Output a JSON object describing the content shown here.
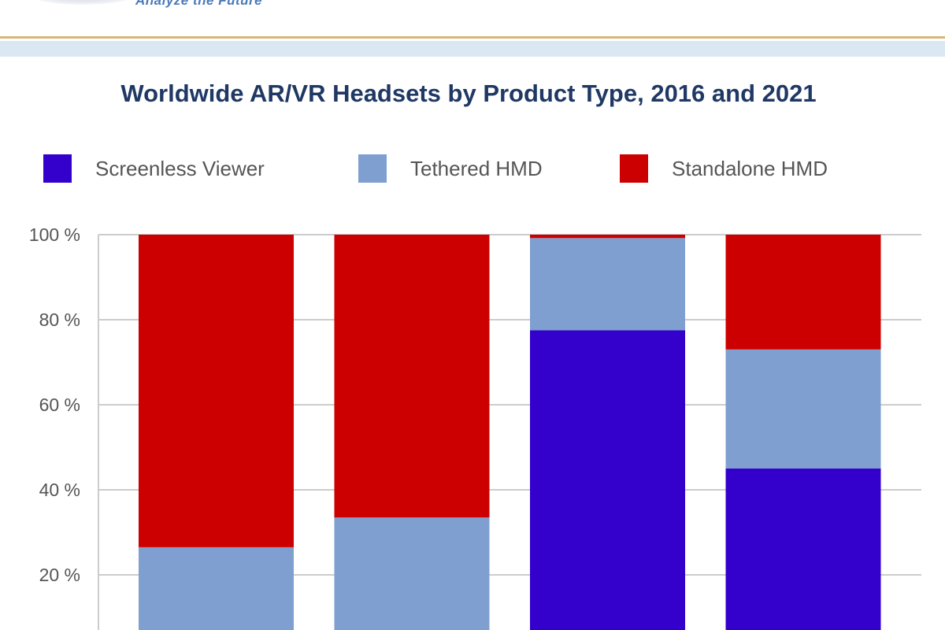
{
  "brand": {
    "tagline": "Analyze the Future"
  },
  "colors": {
    "screenless": "#3300cc",
    "tethered": "#7f9fd0",
    "standalone": "#cc0000",
    "title": "#1f3864",
    "gridline": "#cccccc"
  },
  "chart_data": {
    "type": "bar",
    "stacked": true,
    "normalized": true,
    "title": "Worldwide AR/VR Headsets by Product Type, 2016 and 2021",
    "xlabel": "",
    "ylabel": "",
    "ylim": [
      0,
      100
    ],
    "yticks": [
      "100 %",
      "80 %",
      "60 %",
      "40 %",
      "20 %"
    ],
    "ytick_values": [
      100,
      80,
      60,
      40,
      20
    ],
    "categories": [
      "",
      "",
      "",
      ""
    ],
    "series": [
      {
        "name": "Screenless Viewer",
        "color": "#3300cc",
        "values": [
          0,
          0,
          77.5,
          45
        ]
      },
      {
        "name": "Tethered HMD",
        "color": "#7f9fd0",
        "values": [
          26.5,
          33.5,
          21.7,
          28
        ]
      },
      {
        "name": "Standalone HMD",
        "color": "#cc0000",
        "values": [
          73.5,
          66.5,
          0.8,
          27
        ]
      }
    ],
    "legend_position": "top",
    "grid": true
  }
}
